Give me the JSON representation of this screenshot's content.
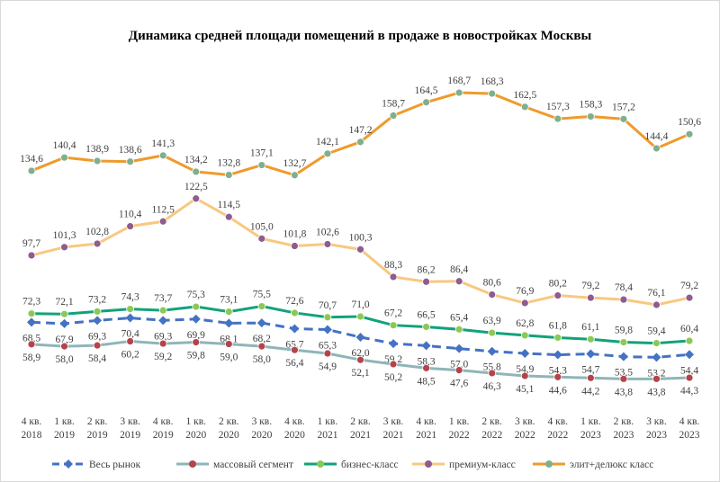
{
  "chart_data": {
    "type": "line",
    "title": "Динамика  средней площади помещений  в продаже в новостройках  Москвы",
    "categories": [
      [
        "4 кв.",
        "2018"
      ],
      [
        "1 кв.",
        "2019"
      ],
      [
        "2 кв.",
        "2019"
      ],
      [
        "3 кв.",
        "2019"
      ],
      [
        "4 кв.",
        "2019"
      ],
      [
        "1 кв.",
        "2020"
      ],
      [
        "2 кв.",
        "2020"
      ],
      [
        "3 кв.",
        "2020"
      ],
      [
        "4 кв.",
        "2020"
      ],
      [
        "1 кв.",
        "2021"
      ],
      [
        "2 кв.",
        "2021"
      ],
      [
        "3 кв.",
        "2021"
      ],
      [
        "4 кв.",
        "2021"
      ],
      [
        "1 кв.",
        "2022"
      ],
      [
        "2 кв.",
        "2022"
      ],
      [
        "3 кв.",
        "2022"
      ],
      [
        "4 кв.",
        "2022"
      ],
      [
        "1 кв.",
        "2023"
      ],
      [
        "2 кв.",
        "2023"
      ],
      [
        "3 кв.",
        "2023"
      ],
      [
        "4 кв.",
        "2023"
      ]
    ],
    "ylim": [
      40,
      175
    ],
    "grid": false,
    "legend_position": "bottom",
    "series": [
      {
        "name": "Весь рынок",
        "color": "#4472c4",
        "marker_color": "#4472c4",
        "dashed": true,
        "label_pos": "below",
        "values": [
          68.5,
          67.9,
          69.3,
          70.4,
          69.3,
          69.9,
          68.1,
          68.2,
          65.7,
          65.3,
          62.0,
          59.2,
          58.3,
          57.0,
          55.8,
          54.9,
          54.3,
          54.7,
          53.5,
          53.2,
          54.4
        ]
      },
      {
        "name": "массовый сегмент",
        "color": "#8fb5b8",
        "marker_color": "#b5434a",
        "dashed": false,
        "label_pos": "below",
        "values": [
          58.9,
          58.0,
          58.4,
          60.2,
          59.2,
          59.8,
          59.0,
          58.0,
          56.4,
          54.9,
          52.1,
          50.2,
          48.5,
          47.6,
          46.3,
          45.1,
          44.6,
          44.2,
          43.8,
          43.8,
          44.3
        ]
      },
      {
        "name": "бизнес-класс",
        "color": "#12a27a",
        "marker_color": "#8dc857",
        "dashed": false,
        "label_pos": "above",
        "values": [
          72.3,
          72.1,
          73.2,
          74.3,
          73.7,
          75.3,
          73.1,
          75.5,
          72.6,
          70.7,
          71.0,
          67.2,
          66.5,
          65.4,
          63.9,
          62.8,
          61.8,
          61.1,
          59.8,
          59.4,
          60.4
        ]
      },
      {
        "name": "премиум-класс",
        "color": "#f8c880",
        "marker_color": "#8e5c8f",
        "dashed": false,
        "label_pos": "above",
        "values": [
          97.7,
          101.3,
          102.8,
          110.4,
          112.5,
          122.5,
          114.5,
          105.0,
          101.8,
          102.6,
          100.3,
          88.3,
          86.2,
          86.4,
          80.6,
          76.9,
          80.2,
          79.2,
          78.4,
          76.1,
          79.2
        ]
      },
      {
        "name": "элит+делюкс класс",
        "color": "#ef9a2c",
        "marker_color": "#7fb08e",
        "dashed": false,
        "label_pos": "above",
        "values": [
          134.6,
          140.4,
          138.9,
          138.6,
          141.3,
          134.2,
          132.8,
          137.1,
          132.7,
          142.1,
          147.2,
          158.7,
          164.5,
          168.7,
          168.3,
          162.5,
          157.3,
          158.3,
          157.2,
          144.4,
          150.6
        ]
      }
    ]
  }
}
